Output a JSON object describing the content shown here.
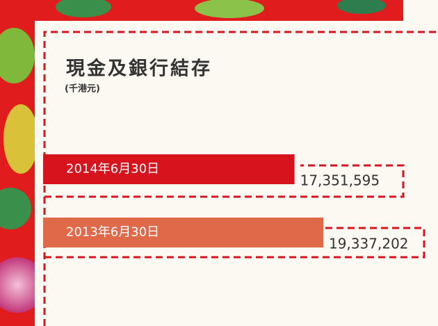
{
  "chart_data": {
    "type": "bar",
    "orientation": "horizontal",
    "title": "現金及銀行結存",
    "subtitle": "(千港元)",
    "categories": [
      "2014年6月30日",
      "2013年6月30日"
    ],
    "values": [
      17351595,
      19337202
    ],
    "value_labels": [
      "17,351,595",
      "19,337,202"
    ],
    "colors": [
      "#d7141e",
      "#e0694a"
    ]
  }
}
